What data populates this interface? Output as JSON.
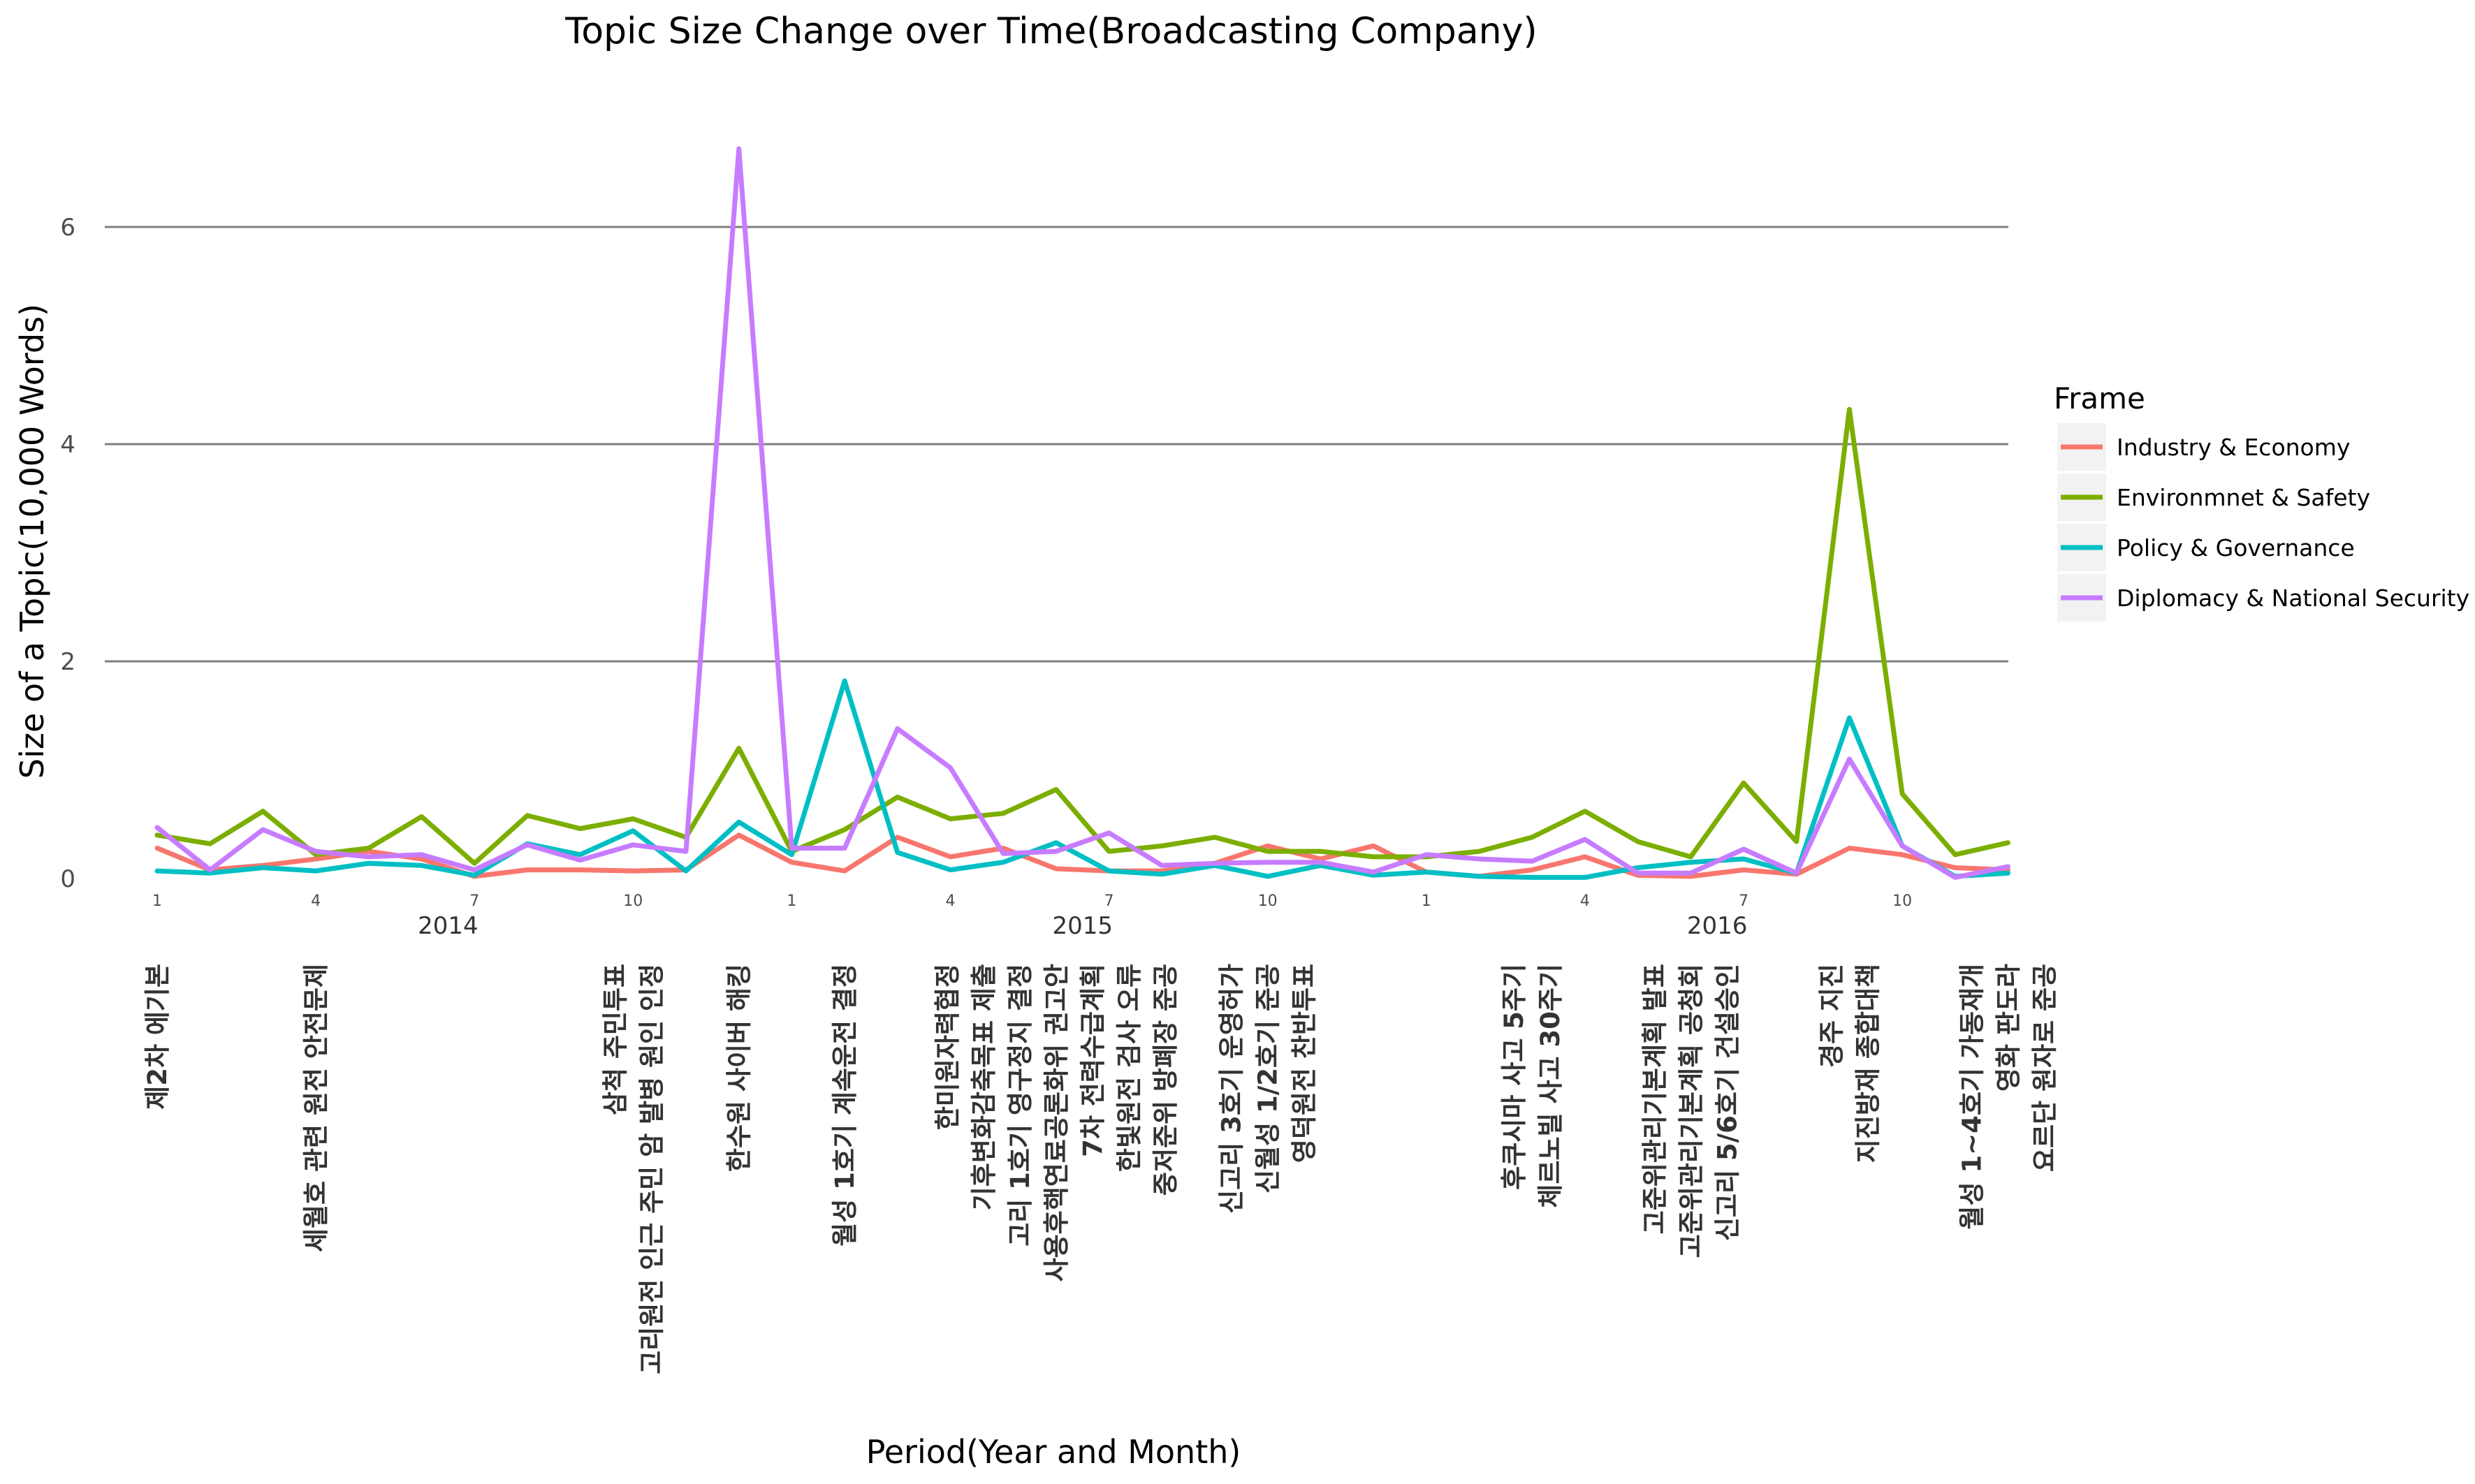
{
  "chart_data": {
    "type": "line",
    "title": "Topic Size Change over Time(Broadcasting Company)",
    "xlabel": "Period(Year and Month)",
    "ylabel": "Size of a Topic(10,000 Words)",
    "ylim": [
      0,
      7
    ],
    "yticks": [
      "0",
      "2",
      "4",
      "6"
    ],
    "month_ticks": [
      "1",
      "4",
      "7",
      "10",
      "1",
      "4",
      "7",
      "10",
      "1",
      "4",
      "7",
      "10"
    ],
    "year_labels": [
      "2014",
      "2015",
      "2016"
    ],
    "x": [
      "2014-01",
      "2014-02",
      "2014-03",
      "2014-04",
      "2014-05",
      "2014-06",
      "2014-07",
      "2014-08",
      "2014-09",
      "2014-10",
      "2014-11",
      "2014-12",
      "2015-01",
      "2015-02",
      "2015-03",
      "2015-04",
      "2015-05",
      "2015-06",
      "2015-07",
      "2015-08",
      "2015-09",
      "2015-10",
      "2015-11",
      "2015-12",
      "2016-01",
      "2016-02",
      "2016-03",
      "2016-04",
      "2016-05",
      "2016-06",
      "2016-07",
      "2016-08",
      "2016-09",
      "2016-10",
      "2016-11",
      "2016-12"
    ],
    "legend_title": "Frame",
    "legend_position": "right",
    "grid": true,
    "series": [
      {
        "name": "Industry & Economy",
        "color": "#F8766D",
        "values": [
          0.28,
          0.08,
          0.12,
          0.18,
          0.25,
          0.18,
          0.02,
          0.08,
          0.08,
          0.07,
          0.08,
          0.4,
          0.15,
          0.07,
          0.38,
          0.2,
          0.28,
          0.09,
          0.07,
          0.07,
          0.14,
          0.3,
          0.18,
          0.3,
          0.06,
          0.02,
          0.08,
          0.2,
          0.03,
          0.02,
          0.08,
          0.04,
          0.28,
          0.22,
          0.1,
          0.08
        ]
      },
      {
        "name": "Environmnet & Safety",
        "color": "#7CAE00",
        "values": [
          0.4,
          0.32,
          0.62,
          0.22,
          0.28,
          0.57,
          0.14,
          0.58,
          0.46,
          0.55,
          0.38,
          1.2,
          0.25,
          0.45,
          0.75,
          0.55,
          0.6,
          0.82,
          0.25,
          0.3,
          0.38,
          0.25,
          0.25,
          0.2,
          0.2,
          0.25,
          0.38,
          0.62,
          0.34,
          0.2,
          0.88,
          0.34,
          4.32,
          0.78,
          0.22,
          0.33
        ]
      },
      {
        "name": "Policy & Governance",
        "color": "#00BFC4",
        "values": [
          0.07,
          0.05,
          0.1,
          0.07,
          0.14,
          0.12,
          0.03,
          0.32,
          0.22,
          0.44,
          0.07,
          0.52,
          0.22,
          1.82,
          0.24,
          0.08,
          0.15,
          0.33,
          0.07,
          0.04,
          0.12,
          0.02,
          0.12,
          0.03,
          0.06,
          0.02,
          0.01,
          0.01,
          0.1,
          0.15,
          0.18,
          0.05,
          1.48,
          0.3,
          0.02,
          0.05
        ]
      },
      {
        "name": "Diplomacy & National Security",
        "color": "#C77CFF",
        "values": [
          0.47,
          0.08,
          0.45,
          0.25,
          0.2,
          0.22,
          0.08,
          0.31,
          0.17,
          0.31,
          0.25,
          6.72,
          0.28,
          0.28,
          1.38,
          1.02,
          0.23,
          0.25,
          0.42,
          0.12,
          0.14,
          0.15,
          0.15,
          0.06,
          0.22,
          0.18,
          0.16,
          0.36,
          0.05,
          0.05,
          0.27,
          0.05,
          1.1,
          0.3,
          0.01,
          0.11
        ]
      }
    ],
    "event_annotations": [
      {
        "month": "2014-01",
        "lines": [
          "제2차 에기본"
        ]
      },
      {
        "month": "2014-04",
        "lines": [
          "세월호 관련 원전 안전문제"
        ]
      },
      {
        "month": "2014-10",
        "lines": [
          "삼척 주민투표",
          "고리원전 인근 주민 암 발병 원인 인정"
        ]
      },
      {
        "month": "2014-12",
        "lines": [
          "한수원 사이버 해킹"
        ]
      },
      {
        "month": "2015-02",
        "lines": [
          "월성 1호기 계속운전 결정"
        ]
      },
      {
        "month": "2015-06",
        "lines": [
          "한미원자력협정",
          "기후변화감축목표 제출",
          "고리 1호기 영구정지 결정",
          "사용후핵연료공론화위 권고안",
          "7차 전력수급계획",
          "한빛원전 검사 오류",
          "중저준위 방폐장 준공"
        ]
      },
      {
        "month": "2015-10",
        "lines": [
          "신고리 3호기 운영허가",
          "신월성 1/2호기 준공",
          "영덕원전 찬반투표"
        ]
      },
      {
        "month": "2016-03",
        "lines": [
          "후쿠시마 사고 5주기",
          "체르노빌 사고 30주기"
        ]
      },
      {
        "month": "2016-06",
        "lines": [
          "고준위관리기본계획 발표",
          "고준위관리기본계획 공청회",
          "신고리 5/6호기 건설승인"
        ]
      },
      {
        "month": "2016-09",
        "lines": [
          "경주 지진",
          "지진방재 종합대책"
        ]
      },
      {
        "month": "2016-12",
        "lines": [
          "월성 1~4호기 가동재개",
          "영화 판도라",
          "요르단 원자로 준공"
        ]
      }
    ]
  }
}
